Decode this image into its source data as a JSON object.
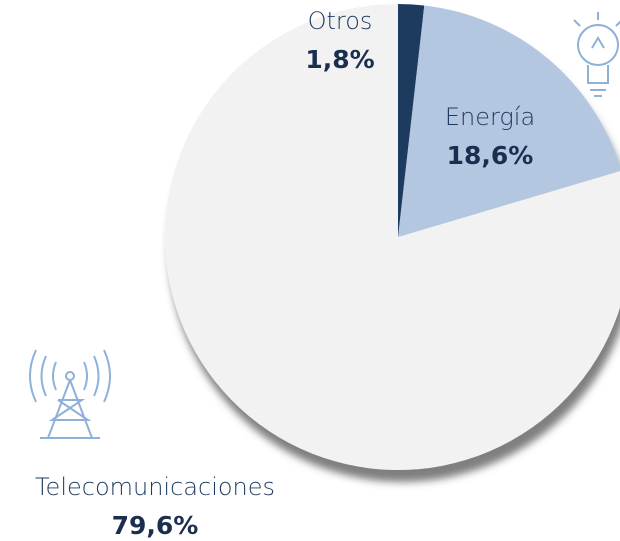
{
  "chart_data": {
    "type": "pie",
    "categories": [
      "Otros",
      "Energía",
      "Telecomunicaciones"
    ],
    "values": [
      1.8,
      18.6,
      79.6
    ],
    "value_labels": [
      "1,8%",
      "18,6%",
      "79,6%"
    ],
    "colors": [
      "#1f3a5f",
      "#b4c7e0",
      "#f2f2f2"
    ]
  }
}
